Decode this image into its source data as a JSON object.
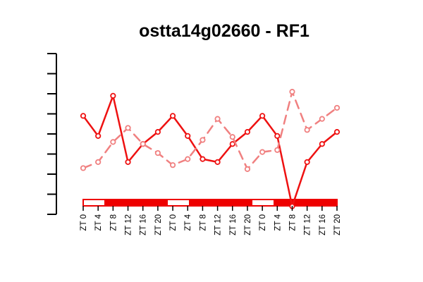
{
  "chart_data": {
    "type": "line",
    "title": "ostta14g02660 - RF1",
    "xlabel": "",
    "ylabel": "",
    "x": [
      "ZT 0",
      "ZT 4",
      "ZT 8",
      "ZT 12",
      "ZT 16",
      "ZT 20",
      "ZT 0",
      "ZT 4",
      "ZT 8",
      "ZT 12",
      "ZT 16",
      "ZT 20",
      "ZT 0",
      "ZT 4",
      "ZT 8",
      "ZT 12",
      "ZT 16",
      "ZT 20"
    ],
    "ylim": [
      0,
      8
    ],
    "y_ticks": [
      0,
      1,
      2,
      3,
      4,
      5,
      6,
      7,
      8
    ],
    "y_tick_labels_shown": false,
    "grid": false,
    "series": [
      {
        "style": "solid",
        "color": "#ee1111",
        "values": [
          4.9,
          3.9,
          5.9,
          2.6,
          3.5,
          4.1,
          4.9,
          3.9,
          2.75,
          2.6,
          3.5,
          4.1,
          4.9,
          3.9,
          0.4,
          2.6,
          3.5,
          4.1
        ]
      },
      {
        "style": "dashed",
        "color": "#f08080",
        "values": [
          2.3,
          2.6,
          3.6,
          4.3,
          3.5,
          3.05,
          2.45,
          2.75,
          3.7,
          4.75,
          3.85,
          2.25,
          3.1,
          3.2,
          6.1,
          4.2,
          4.75,
          5.3
        ]
      }
    ],
    "light_dark_bar": {
      "colors": {
        "light": "#ffffff",
        "dark": "#ee0000",
        "border": "#ee0000"
      },
      "segments": [
        "light",
        "dark",
        "dark",
        "dark",
        "light",
        "dark",
        "dark",
        "dark",
        "light",
        "dark",
        "dark",
        "dark"
      ]
    },
    "colors": {
      "axis": "#000000",
      "solid_series": "#ee1111",
      "dashed_series": "#f08080"
    }
  }
}
